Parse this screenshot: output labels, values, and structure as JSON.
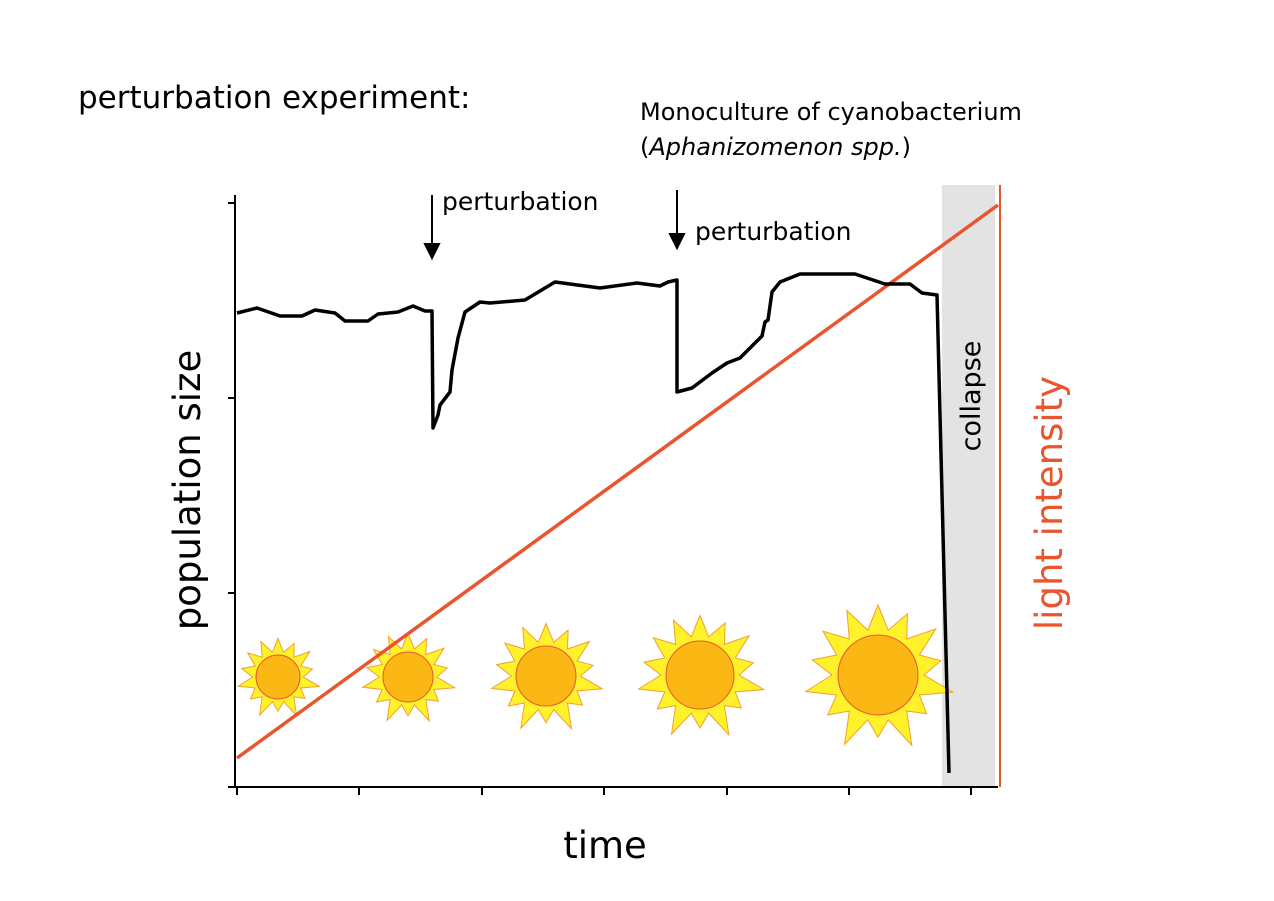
{
  "header": {
    "title": "perturbation experiment:",
    "note_line1": "Monoculture of cyanobacterium",
    "note_line2_open": "(",
    "note_line2_italic": "Aphanizomenon spp.",
    "note_line2_close": ")"
  },
  "annotations": {
    "perturbation_1": "perturbation",
    "perturbation_2": "perturbation",
    "collapse": "collapse"
  },
  "axes": {
    "y_label": "population size",
    "x_label": "time",
    "y2_label": "light intensity"
  }
}
